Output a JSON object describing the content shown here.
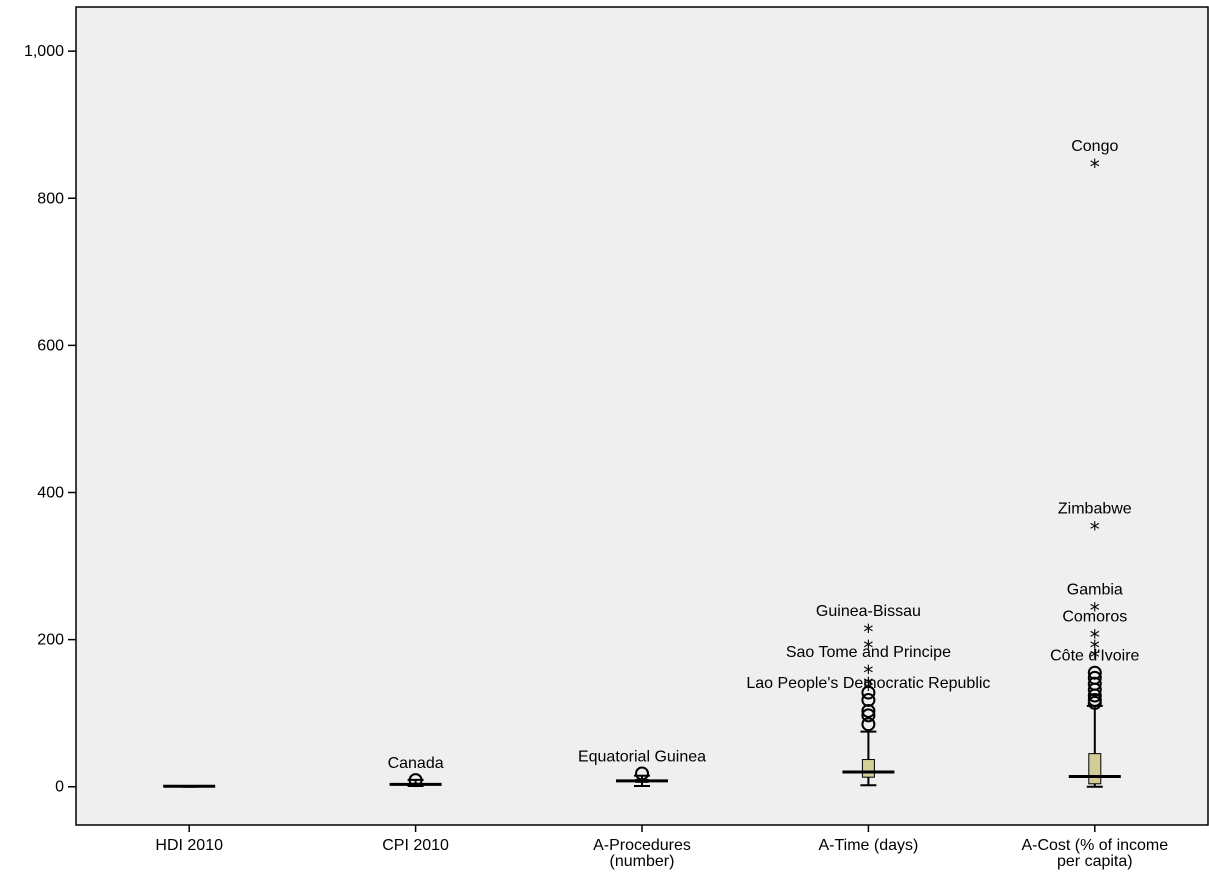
{
  "chart_data": {
    "type": "boxplot",
    "title": "",
    "xlabel": "",
    "ylabel": "",
    "ylim": [
      -52,
      1060
    ],
    "yticks": [
      0,
      200,
      400,
      600,
      800,
      1000
    ],
    "ytick_labels": [
      "0",
      "200",
      "400",
      "600",
      "800",
      "1,000"
    ],
    "grid": false,
    "colors": {
      "plot_bg": "#efefef",
      "box_fill": "#d3ce97",
      "stroke": "#000000"
    },
    "categories": [
      {
        "label_lines": [
          "HDI 2010"
        ],
        "min": 0.14,
        "q1": 0.4,
        "median": 0.67,
        "q3": 0.8,
        "max": 0.94,
        "outliers": []
      },
      {
        "label_lines": [
          "CPI 2010"
        ],
        "min": 1.1,
        "q1": 2.5,
        "median": 3.2,
        "q3": 4.8,
        "max": 9.3,
        "outliers": [
          {
            "value": 9,
            "marker": "circle",
            "label": "Canada"
          }
        ]
      },
      {
        "label_lines": [
          "A-Procedures",
          "(number)"
        ],
        "min": 1,
        "q1": 6,
        "median": 8,
        "q3": 10,
        "max": 15,
        "outliers": [
          {
            "value": 18,
            "marker": "circle",
            "label": "Equatorial Guinea"
          }
        ]
      },
      {
        "label_lines": [
          "A-Time (days)"
        ],
        "min": 2,
        "q1": 13,
        "median": 20,
        "q3": 37,
        "max": 75,
        "outliers": [
          {
            "value": 85,
            "marker": "circle",
            "label": ""
          },
          {
            "value": 97,
            "marker": "circle",
            "label": ""
          },
          {
            "value": 103,
            "marker": "circle",
            "label": ""
          },
          {
            "value": 118,
            "marker": "circle",
            "label": "Lao People's Democratic Republic"
          },
          {
            "value": 128,
            "marker": "circle",
            "label": ""
          },
          {
            "value": 137,
            "marker": "star",
            "label": ""
          },
          {
            "value": 144,
            "marker": "star",
            "label": ""
          },
          {
            "value": 160,
            "marker": "star",
            "label": "Sao Tome and Principe"
          },
          {
            "value": 194,
            "marker": "star",
            "label": ""
          },
          {
            "value": 216,
            "marker": "star",
            "label": "Guinea-Bissau"
          }
        ]
      },
      {
        "label_lines": [
          "A-Cost (% of income",
          "per capita)"
        ],
        "min": 0,
        "q1": 4,
        "median": 14,
        "q3": 45,
        "max": 110,
        "outliers": [
          {
            "value": 114,
            "marker": "circle",
            "label": ""
          },
          {
            "value": 118,
            "marker": "circle",
            "label": ""
          },
          {
            "value": 124,
            "marker": "circle",
            "label": ""
          },
          {
            "value": 132,
            "marker": "circle",
            "label": ""
          },
          {
            "value": 140,
            "marker": "circle",
            "label": ""
          },
          {
            "value": 148,
            "marker": "circle",
            "label": ""
          },
          {
            "value": 155,
            "marker": "circle",
            "label": "Côte d'Ivoire"
          },
          {
            "value": 181,
            "marker": "star",
            "label": ""
          },
          {
            "value": 194,
            "marker": "star",
            "label": ""
          },
          {
            "value": 208,
            "marker": "star",
            "label": "Comoros"
          },
          {
            "value": 245,
            "marker": "star",
            "label": "Gambia"
          },
          {
            "value": 355,
            "marker": "star",
            "label": "Zimbabwe"
          },
          {
            "value": 848,
            "marker": "star",
            "label": "Congo"
          }
        ]
      }
    ]
  }
}
